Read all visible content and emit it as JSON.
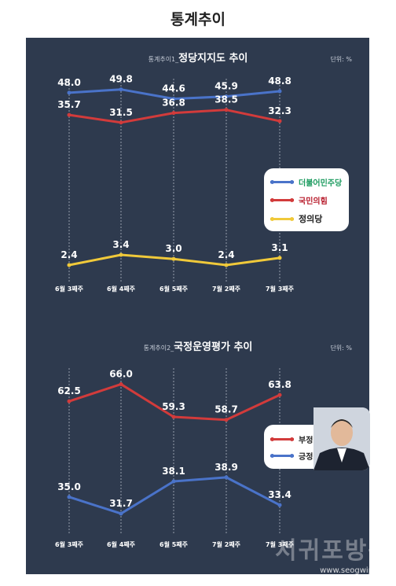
{
  "page_title": "통계추이",
  "watermark": {
    "text": "서귀포방송",
    "url": "www.seogwipo.tv"
  },
  "colors": {
    "blue": "#4a73c9",
    "red": "#d23b3b",
    "yellow": "#f0c93a",
    "panel": "#2e3a4e"
  },
  "chart_data": [
    {
      "type": "line",
      "title_prefix": "통계추이1_",
      "title": "정당지지도 추이",
      "unit": "단위: %",
      "categories": [
        "6월 3째주",
        "6월 4째주",
        "6월 5째주",
        "7월 2째주",
        "7월 3째주"
      ],
      "series": [
        {
          "name": "더불어민주당",
          "color": "#4a73c9",
          "values": [
            48.0,
            49.8,
            44.6,
            45.9,
            48.8
          ]
        },
        {
          "name": "국민의힘",
          "color": "#d23b3b",
          "values": [
            35.7,
            31.5,
            36.8,
            38.5,
            32.3
          ]
        },
        {
          "name": "정의당",
          "color": "#f0c93a",
          "values": [
            2.4,
            3.4,
            3.0,
            2.4,
            3.1
          ]
        }
      ],
      "legend_position": "right",
      "grid": "dashed-vertical"
    },
    {
      "type": "line",
      "title_prefix": "통계추이2_",
      "title": "국정운영평가 추이",
      "unit": "단위: %",
      "categories": [
        "6월 3째주",
        "6월 4째주",
        "6월 5째주",
        "7월 2째주",
        "7월 3째주"
      ],
      "series": [
        {
          "name": "부정",
          "color": "#d23b3b",
          "values": [
            62.5,
            66.0,
            59.3,
            58.7,
            63.8
          ]
        },
        {
          "name": "긍정",
          "color": "#4a73c9",
          "values": [
            35.0,
            31.7,
            38.1,
            38.9,
            33.4
          ]
        }
      ],
      "legend_position": "right",
      "grid": "dashed-vertical"
    }
  ]
}
